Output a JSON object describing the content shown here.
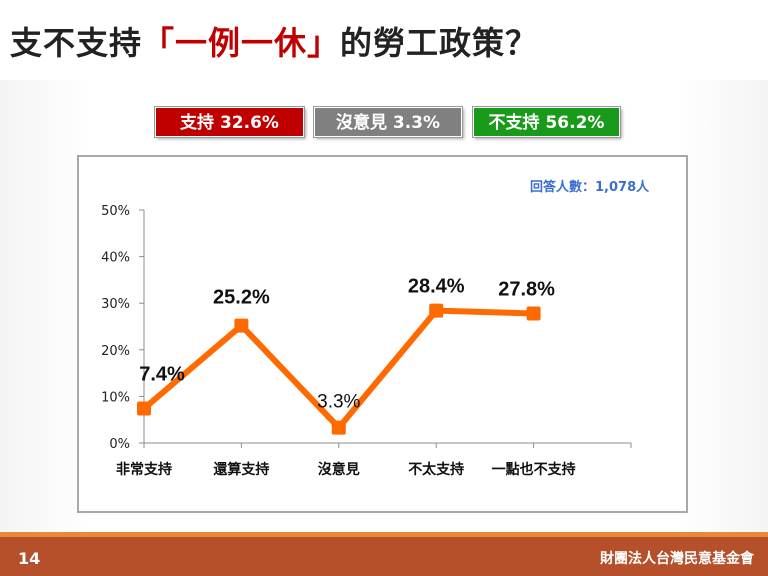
{
  "title": {
    "prefix": "支不支持",
    "highlight": "「一例一休」",
    "suffix": "的勞工政策？"
  },
  "badges": {
    "support": "支持 32.6%",
    "no_opinion": "沒意見 3.3%",
    "against": "不支持 56.2%"
  },
  "respondents": "回答人數：1,078人",
  "footer": {
    "page_number": "14",
    "organization": "財團法人台灣民意基金會"
  },
  "colors": {
    "line": "#ff6a00",
    "support": "#c00000",
    "no_opinion": "#808080",
    "against": "#1a9a1a",
    "footer": "#b5502a"
  },
  "chart_data": {
    "type": "line",
    "categories": [
      "非常支持",
      "還算支持",
      "沒意見",
      "不太支持",
      "一點也不支持"
    ],
    "values": [
      7.4,
      25.2,
      3.3,
      28.4,
      27.8
    ],
    "data_labels": [
      "7.4%",
      "25.2%",
      "3.3%",
      "28.4%",
      "27.8%"
    ],
    "y_ticks": [
      "0%",
      "10%",
      "20%",
      "30%",
      "40%",
      "50%"
    ],
    "ylim": [
      0,
      50
    ],
    "grid": false,
    "legend": "none"
  }
}
